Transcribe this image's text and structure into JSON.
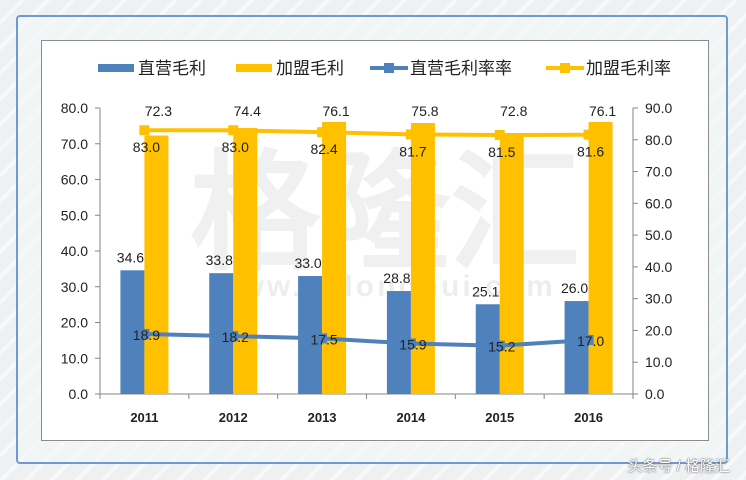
{
  "chart_data": {
    "type": "bar",
    "categories": [
      "2011",
      "2012",
      "2013",
      "2014",
      "2015",
      "2016"
    ],
    "series": [
      {
        "name": "直营毛利",
        "type": "bar",
        "axis": "left",
        "color": "#4f81bd",
        "values": [
          34.6,
          33.8,
          33.0,
          28.8,
          25.1,
          26.0
        ]
      },
      {
        "name": "加盟毛利",
        "type": "bar",
        "axis": "left",
        "color": "#ffc000",
        "values": [
          72.3,
          74.4,
          76.1,
          75.8,
          72.8,
          76.1
        ]
      },
      {
        "name": "直营毛利率率",
        "type": "line",
        "axis": "right",
        "color": "#4f81bd",
        "values": [
          18.9,
          18.2,
          17.5,
          15.9,
          15.2,
          17.0
        ]
      },
      {
        "name": "加盟毛利率",
        "type": "line",
        "axis": "right",
        "color": "#ffc000",
        "values": [
          83.0,
          83.0,
          82.4,
          81.7,
          81.5,
          81.6
        ]
      }
    ],
    "ylim_left": [
      0,
      80
    ],
    "ylim_right": [
      0,
      90
    ],
    "yticks_left": [
      "0.0",
      "10.0",
      "20.0",
      "30.0",
      "40.0",
      "50.0",
      "60.0",
      "70.0",
      "80.0"
    ],
    "yticks_right": [
      "0.0",
      "10.0",
      "20.0",
      "30.0",
      "40.0",
      "50.0",
      "60.0",
      "70.0",
      "80.0",
      "90.0"
    ],
    "legend_position": "top",
    "grid": false
  },
  "watermark": {
    "main": "格隆汇",
    "url": "www.gelonghui.com"
  },
  "footer": "头条号 / 格隆汇"
}
